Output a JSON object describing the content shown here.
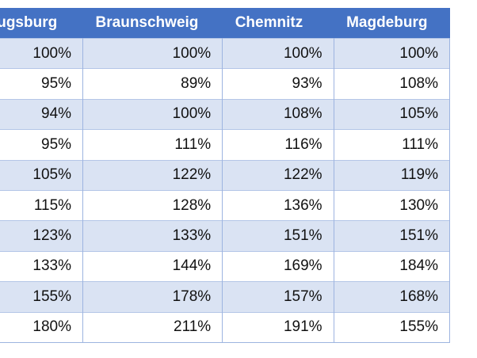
{
  "table": {
    "columns": [
      "Augsburg",
      "Braunschweig",
      "Chemnitz",
      "Magdeburg"
    ],
    "rows": [
      [
        "100%",
        "100%",
        "100%",
        "100%"
      ],
      [
        "95%",
        "89%",
        "93%",
        "108%"
      ],
      [
        "94%",
        "100%",
        "108%",
        "105%"
      ],
      [
        "95%",
        "111%",
        "116%",
        "111%"
      ],
      [
        "105%",
        "122%",
        "122%",
        "119%"
      ],
      [
        "115%",
        "128%",
        "136%",
        "130%"
      ],
      [
        "123%",
        "133%",
        "151%",
        "151%"
      ],
      [
        "133%",
        "144%",
        "169%",
        "184%"
      ],
      [
        "155%",
        "178%",
        "157%",
        "168%"
      ],
      [
        "180%",
        "211%",
        "191%",
        "155%"
      ]
    ]
  }
}
